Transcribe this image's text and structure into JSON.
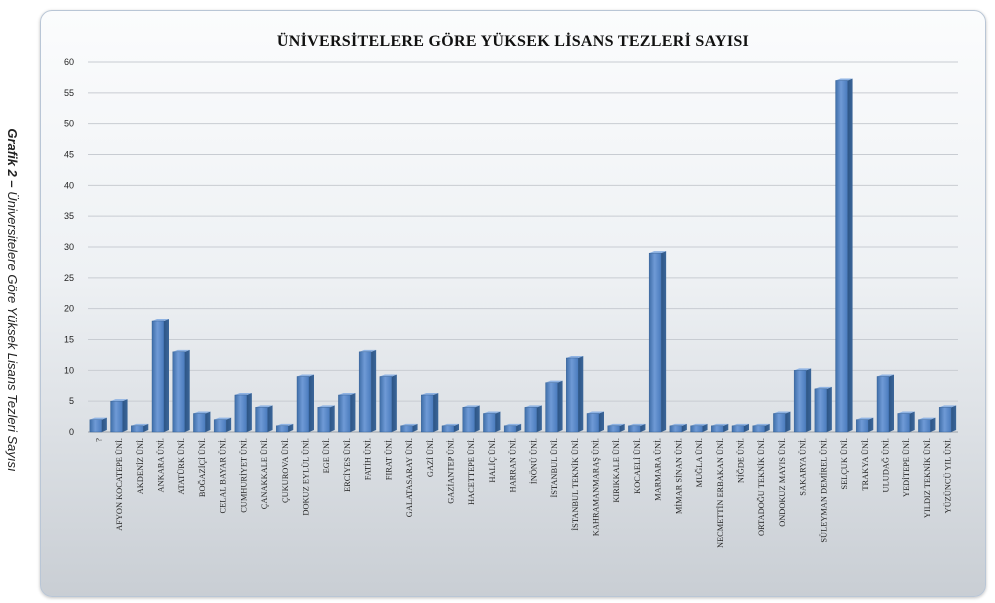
{
  "caption": {
    "bold": "Grafik 2 –",
    "text": "Üniversitelere Göre Yüksek Lisans Tezleri Sayısı"
  },
  "chart_data": {
    "type": "bar",
    "title": "ÜNİVERSİTELERE GÖRE YÜKSEK LİSANS TEZLERİ SAYISI",
    "xlabel": "",
    "ylabel": "",
    "ylim": [
      0,
      60
    ],
    "yticks": [
      0,
      5,
      10,
      15,
      20,
      25,
      30,
      35,
      40,
      45,
      50,
      55,
      60
    ],
    "grid": true,
    "bar_color": "#4f81bd",
    "categories": [
      "?",
      "AFYON KOCATEPE ÜNİ.",
      "AKDENİZ ÜNİ.",
      "ANKARA ÜNİ.",
      "ATATÜRK ÜNİ.",
      "BOĞAZİÇİ ÜNİ.",
      "CELAL BAYAR ÜNİ.",
      "CUMHURİYET ÜNİ.",
      "ÇANAKKALE ÜNİ.",
      "ÇUKUROVA ÜNİ.",
      "DOKUZ EYLÜL ÜNİ.",
      "EGE ÜNİ.",
      "ERCİYES ÜNİ.",
      "FATİH ÜNİ.",
      "FIRAT ÜNİ.",
      "GALATASARAY ÜNİ.",
      "GAZİ ÜNİ.",
      "GAZİANTEP ÜNİ.",
      "HACETTEPE ÜNİ.",
      "HALİÇ ÜNİ.",
      "HARRAN ÜNİ.",
      "İNÖNÜ ÜNİ.",
      "İSTANBUL ÜNİ.",
      "İSTANBUL TEKNİK ÜNİ.",
      "KAHRAMANMARAŞ ÜNİ.",
      "KIRIKKALE ÜNİ.",
      "KOCAELİ ÜNİ.",
      "MARMARA ÜNİ.",
      "MİMAR SİNAN ÜNİ.",
      "MUĞLA ÜNİ.",
      "NECMETTİN ERBAKAN ÜNİ.",
      "NİĞDE ÜNİ.",
      "ORTADOĞU TEKNİK ÜNİ.",
      "ONDOKUZ MAYIS ÜNİ.",
      "SAKARYA ÜNİ.",
      "SÜLEYMAN DEMİREL ÜNİ.",
      "SELÇUK ÜNİ.",
      "TRAKYA ÜNİ.",
      "ULUDAĞ ÜNİ.",
      "YEDİTEPE ÜNİ.",
      "YILDIZ TEKNİK ÜNİ.",
      "YÜZÜNCÜ YIL ÜNİ."
    ],
    "values": [
      2,
      5,
      1,
      18,
      13,
      3,
      2,
      6,
      4,
      1,
      9,
      4,
      6,
      13,
      9,
      1,
      6,
      1,
      4,
      3,
      1,
      4,
      8,
      12,
      3,
      1,
      1,
      29,
      1,
      1,
      1,
      1,
      1,
      3,
      10,
      7,
      57,
      2,
      9,
      3,
      2,
      4
    ]
  }
}
